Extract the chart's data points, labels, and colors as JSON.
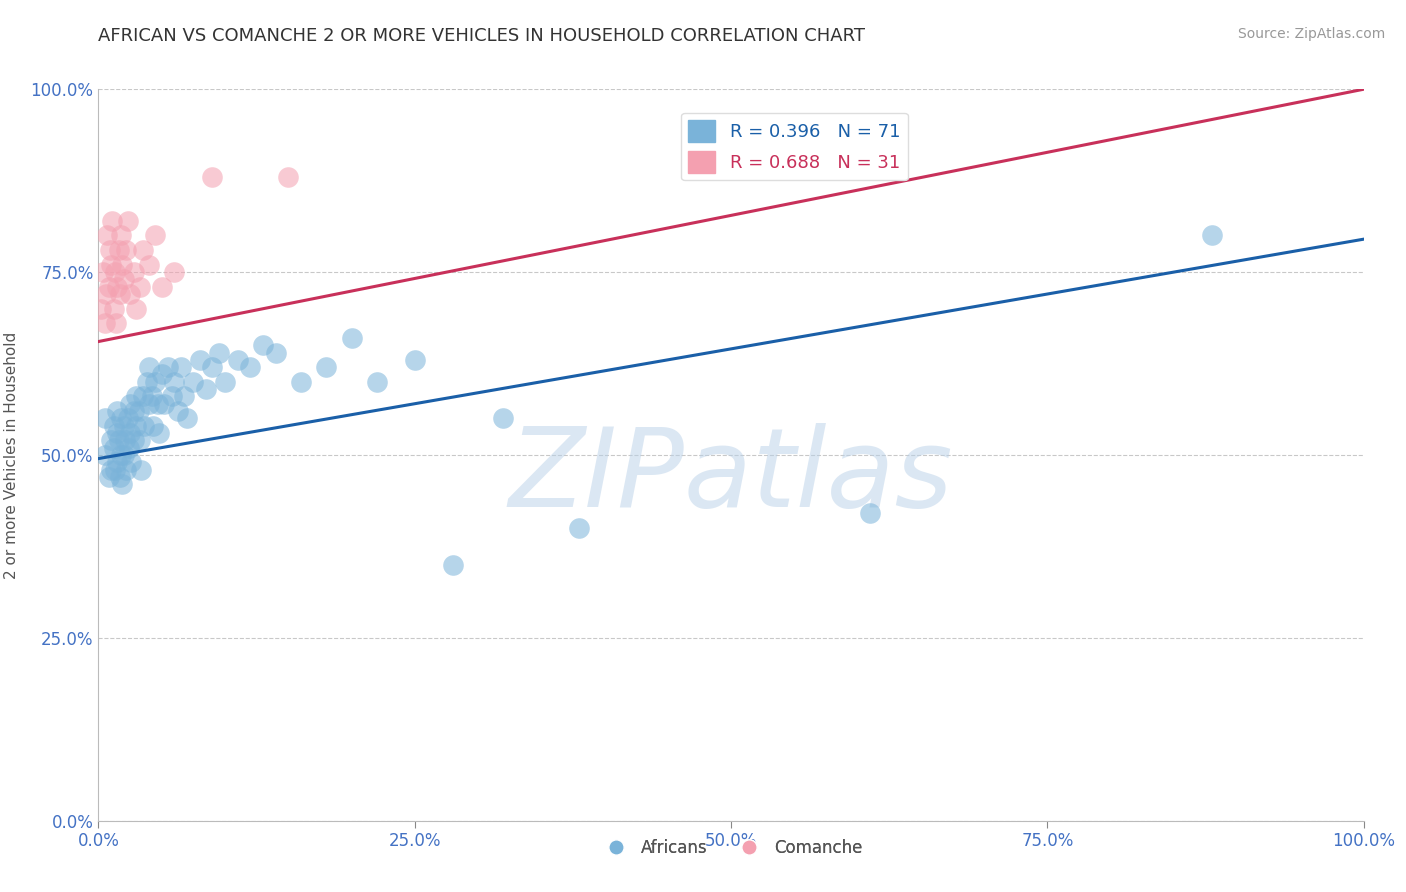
{
  "title": "AFRICAN VS COMANCHE 2 OR MORE VEHICLES IN HOUSEHOLD CORRELATION CHART",
  "source_text": "Source: ZipAtlas.com",
  "ylabel": "2 or more Vehicles in Household",
  "xlim": [
    0.0,
    1.0
  ],
  "ylim": [
    0.0,
    1.0
  ],
  "xticks": [
    0.0,
    0.25,
    0.5,
    0.75,
    1.0
  ],
  "yticks": [
    0.0,
    0.25,
    0.5,
    0.75,
    1.0
  ],
  "xtick_labels": [
    "0.0%",
    "25.0%",
    "50.0%",
    "75.0%",
    "100.0%"
  ],
  "ytick_labels": [
    "0.0%",
    "25.0%",
    "50.0%",
    "75.0%",
    "100.0%"
  ],
  "blue_color": "#7ab3d9",
  "pink_color": "#f4a0b0",
  "blue_line_color": "#1a5fa8",
  "pink_line_color": "#c8305a",
  "legend_blue_label": "R = 0.396   N = 71",
  "legend_pink_label": "R = 0.688   N = 31",
  "legend_africans": "Africans",
  "legend_comanche": "Comanche",
  "watermark": "ZIPatlas",
  "watermark_color": "#b8d0e8",
  "blue_intercept": 0.495,
  "blue_slope": 0.3,
  "pink_intercept": 0.655,
  "pink_slope": 0.345,
  "blue_scatter_x": [
    0.005,
    0.005,
    0.008,
    0.01,
    0.01,
    0.012,
    0.012,
    0.013,
    0.015,
    0.015,
    0.015,
    0.016,
    0.017,
    0.018,
    0.018,
    0.019,
    0.02,
    0.02,
    0.021,
    0.022,
    0.023,
    0.024,
    0.025,
    0.025,
    0.026,
    0.028,
    0.028,
    0.03,
    0.03,
    0.032,
    0.033,
    0.034,
    0.035,
    0.036,
    0.038,
    0.04,
    0.04,
    0.042,
    0.043,
    0.045,
    0.047,
    0.048,
    0.05,
    0.052,
    0.055,
    0.058,
    0.06,
    0.063,
    0.065,
    0.068,
    0.07,
    0.075,
    0.08,
    0.085,
    0.09,
    0.095,
    0.1,
    0.11,
    0.12,
    0.13,
    0.14,
    0.16,
    0.18,
    0.2,
    0.22,
    0.25,
    0.28,
    0.32,
    0.38,
    0.61,
    0.88
  ],
  "blue_scatter_y": [
    0.55,
    0.5,
    0.47,
    0.52,
    0.48,
    0.54,
    0.51,
    0.48,
    0.56,
    0.53,
    0.49,
    0.52,
    0.47,
    0.55,
    0.5,
    0.46,
    0.54,
    0.5,
    0.52,
    0.48,
    0.55,
    0.51,
    0.57,
    0.53,
    0.49,
    0.56,
    0.52,
    0.58,
    0.54,
    0.56,
    0.52,
    0.48,
    0.58,
    0.54,
    0.6,
    0.62,
    0.57,
    0.58,
    0.54,
    0.6,
    0.57,
    0.53,
    0.61,
    0.57,
    0.62,
    0.58,
    0.6,
    0.56,
    0.62,
    0.58,
    0.55,
    0.6,
    0.63,
    0.59,
    0.62,
    0.64,
    0.6,
    0.63,
    0.62,
    0.65,
    0.64,
    0.6,
    0.62,
    0.66,
    0.6,
    0.63,
    0.35,
    0.55,
    0.4,
    0.42,
    0.8
  ],
  "pink_scatter_x": [
    0.002,
    0.004,
    0.005,
    0.006,
    0.007,
    0.008,
    0.009,
    0.01,
    0.011,
    0.012,
    0.013,
    0.014,
    0.015,
    0.016,
    0.017,
    0.018,
    0.019,
    0.02,
    0.022,
    0.023,
    0.025,
    0.028,
    0.03,
    0.033,
    0.035,
    0.04,
    0.045,
    0.05,
    0.06,
    0.09,
    0.15
  ],
  "pink_scatter_y": [
    0.7,
    0.75,
    0.68,
    0.72,
    0.8,
    0.73,
    0.78,
    0.76,
    0.82,
    0.7,
    0.75,
    0.68,
    0.73,
    0.78,
    0.72,
    0.8,
    0.76,
    0.74,
    0.78,
    0.82,
    0.72,
    0.75,
    0.7,
    0.73,
    0.78,
    0.76,
    0.8,
    0.73,
    0.75,
    0.88,
    0.88
  ]
}
